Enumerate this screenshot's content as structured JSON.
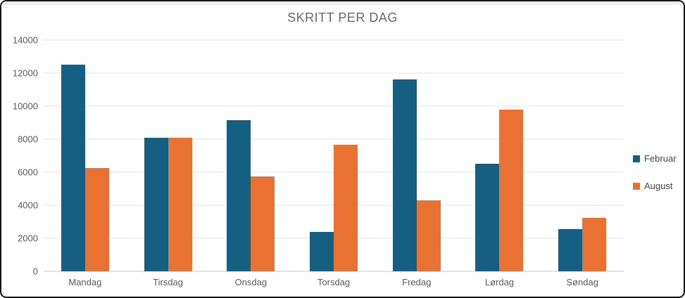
{
  "chart": {
    "title": "SKRITT PER DAG"
  },
  "chart_data": {
    "type": "bar",
    "title": "SKRITT PER DAG",
    "xlabel": "",
    "ylabel": "",
    "categories": [
      "Mandag",
      "Tirsdag",
      "Onsdag",
      "Torsdag",
      "Fredag",
      "Lørdag",
      "Søndag"
    ],
    "series": [
      {
        "name": "Februar",
        "color": "#156082",
        "values": [
          12500,
          8100,
          9150,
          2400,
          11600,
          6500,
          2550
        ]
      },
      {
        "name": "August",
        "color": "#E97132",
        "values": [
          6250,
          8100,
          5750,
          7650,
          4300,
          9800,
          3250
        ]
      }
    ],
    "ylim": [
      0,
      14000
    ],
    "yticks": [
      0,
      2000,
      4000,
      6000,
      8000,
      10000,
      12000,
      14000
    ],
    "grid": "horizontal",
    "legend_position": "right"
  },
  "colors": {
    "februar": "#156082",
    "august": "#E97132",
    "title_text": "#686868",
    "axis_text": "#595959",
    "gridline": "#e3e3e3",
    "frame_border": "#141414"
  }
}
